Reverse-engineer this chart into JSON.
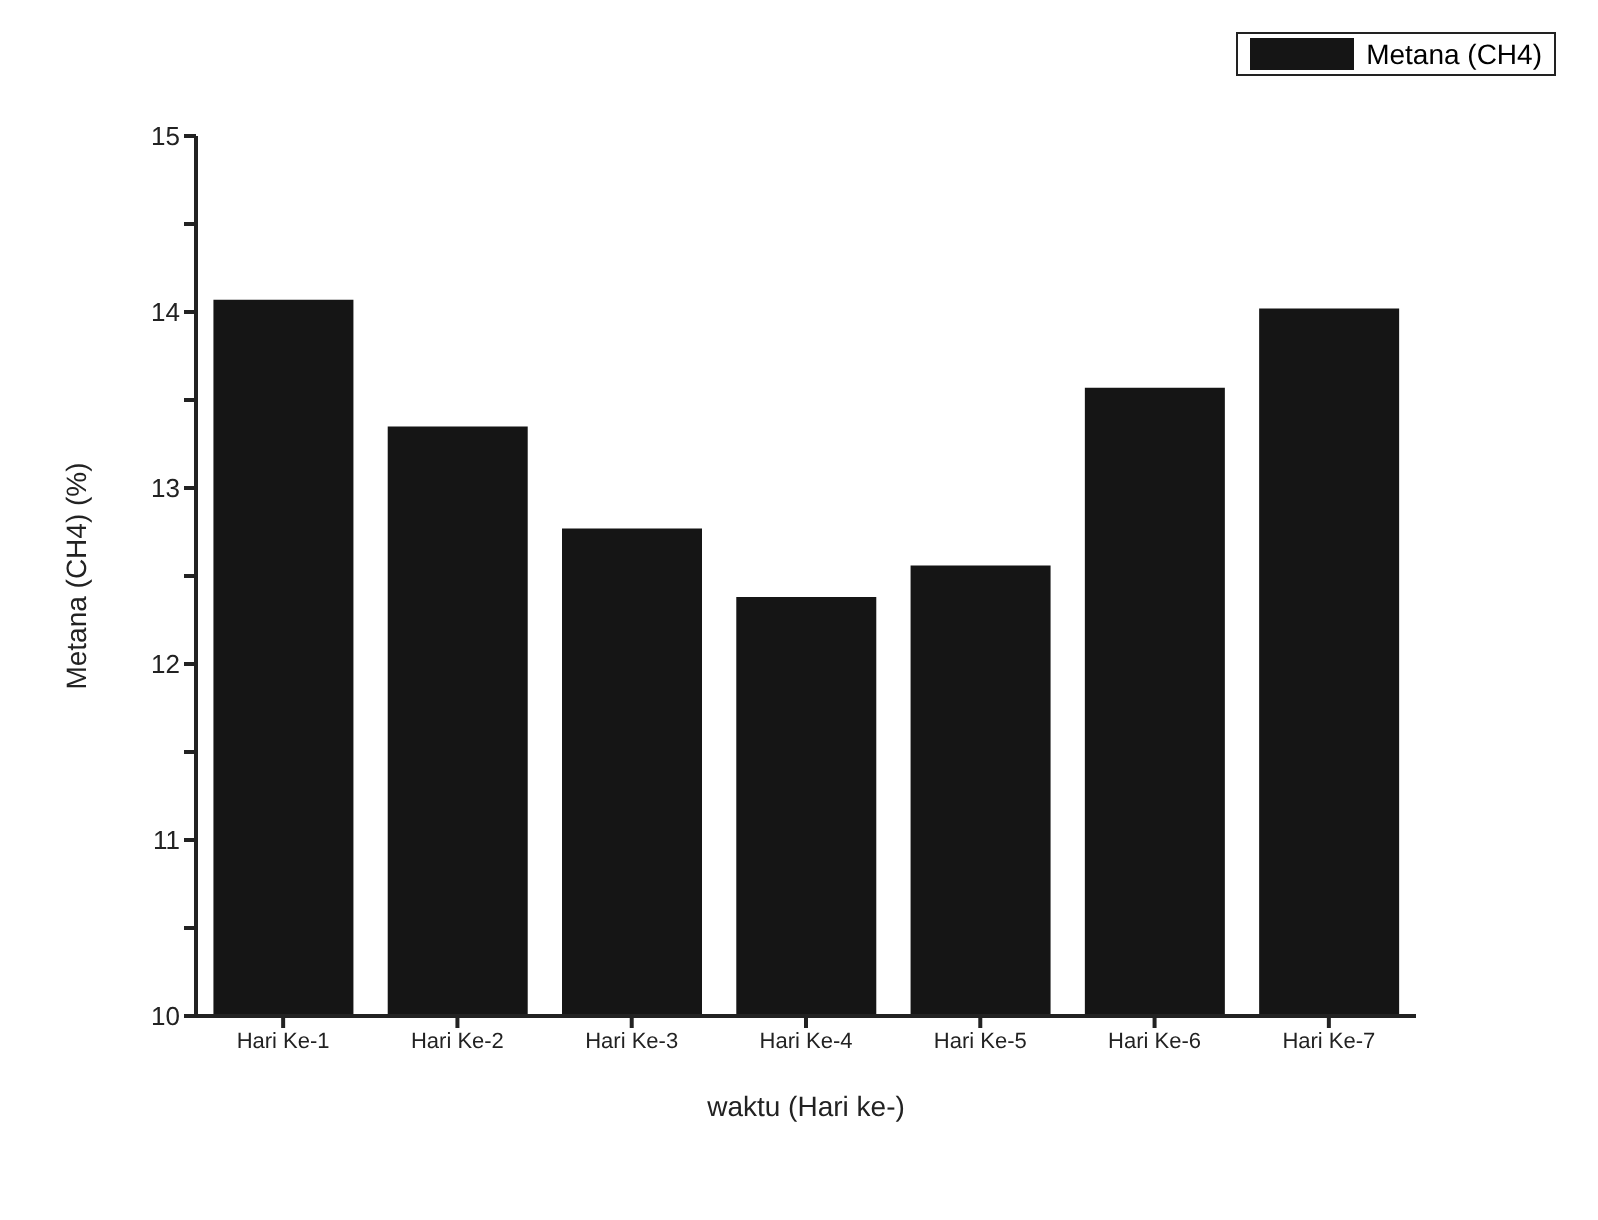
{
  "chart_data": {
    "type": "bar",
    "xlabel": "waktu (Hari ke-)",
    "ylabel": "Metana (CH4) (%)",
    "categories": [
      "Hari Ke-1",
      "Hari Ke-2",
      "Hari Ke-3",
      "Hari Ke-4",
      "Hari Ke-5",
      "Hari Ke-6",
      "Hari Ke-7"
    ],
    "series": [
      {
        "name": "Metana (CH4)",
        "color": "#151515",
        "values": [
          14.07,
          13.35,
          12.77,
          12.38,
          12.56,
          13.57,
          14.02
        ]
      }
    ],
    "ylim": [
      10,
      15
    ],
    "yticks": [
      10,
      {
        "value": 10.5,
        "label": null
      },
      11,
      {
        "value": 11.5,
        "label": null
      },
      12,
      {
        "value": 12.5,
        "label": null
      },
      13,
      {
        "value": 13.5,
        "label": null
      },
      14,
      {
        "value": 14.5,
        "label": null
      },
      15
    ],
    "grid": false,
    "legend": "top right"
  }
}
